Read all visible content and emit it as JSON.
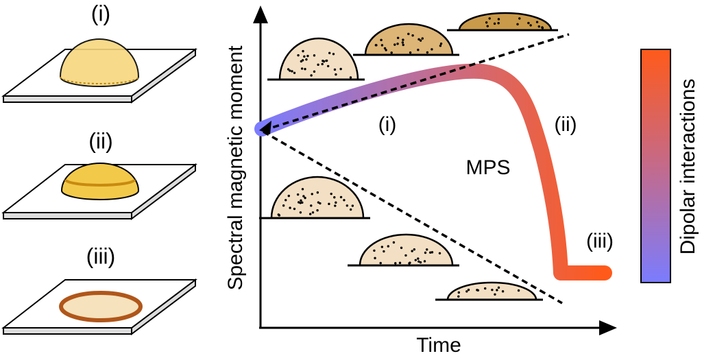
{
  "panels": [
    {
      "label": "(i)"
    },
    {
      "label": "(ii)"
    },
    {
      "label": "(iii)"
    }
  ],
  "plot": {
    "y_axis_label": "Spectral magnetic moment",
    "x_axis_label": "Time",
    "stage_labels": [
      "(i)",
      "(ii)",
      "(iii)"
    ],
    "curve_label": "MPS"
  },
  "colorbar": {
    "label": "Dipolar interactions"
  }
}
